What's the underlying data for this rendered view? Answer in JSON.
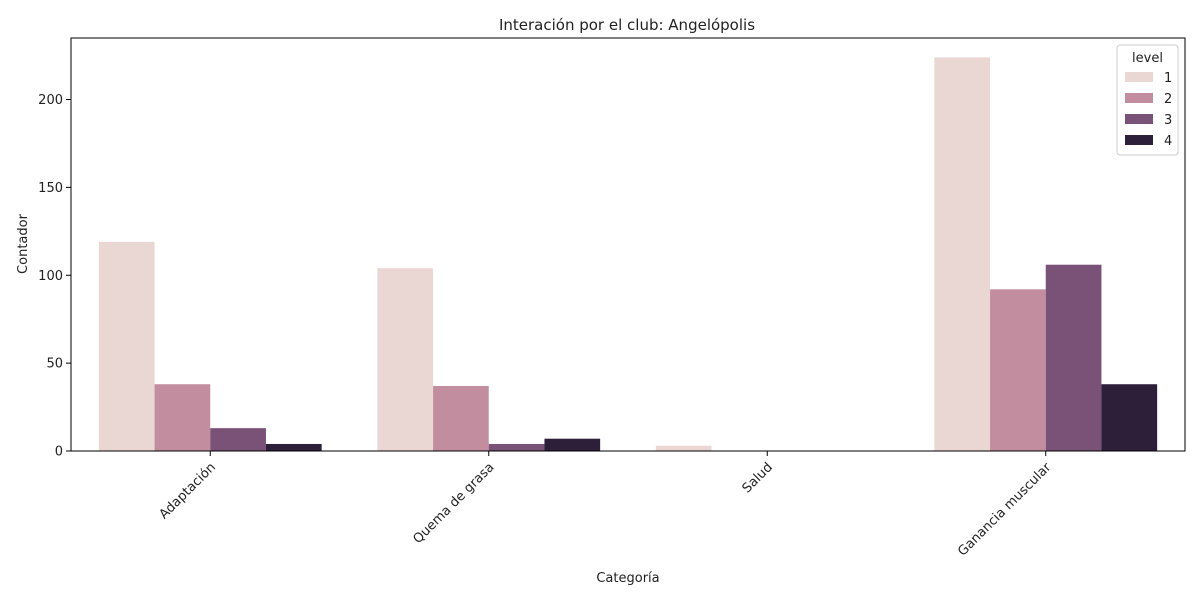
{
  "chart_data": {
    "type": "bar",
    "title": "Interación por el club: Angelópolis",
    "xlabel": "Categoría",
    "ylabel": "Contador",
    "categories": [
      "Adaptación",
      "Quema de grasa",
      "Salud",
      "Ganancia muscular"
    ],
    "series": [
      {
        "name": "1",
        "color": "#ead6d3",
        "values": [
          119,
          104,
          3,
          224
        ]
      },
      {
        "name": "2",
        "color": "#c28e9f",
        "values": [
          38,
          37,
          0,
          92
        ]
      },
      {
        "name": "3",
        "color": "#7a5277",
        "values": [
          13,
          4,
          0,
          106
        ]
      },
      {
        "name": "4",
        "color": "#2d1f3a",
        "values": [
          4,
          7,
          0,
          38
        ]
      }
    ],
    "ylim": [
      0,
      235
    ],
    "yticks": [
      0,
      50,
      100,
      150,
      200
    ],
    "legend": {
      "title": "level",
      "placement": "top-right"
    },
    "grid": false
  }
}
